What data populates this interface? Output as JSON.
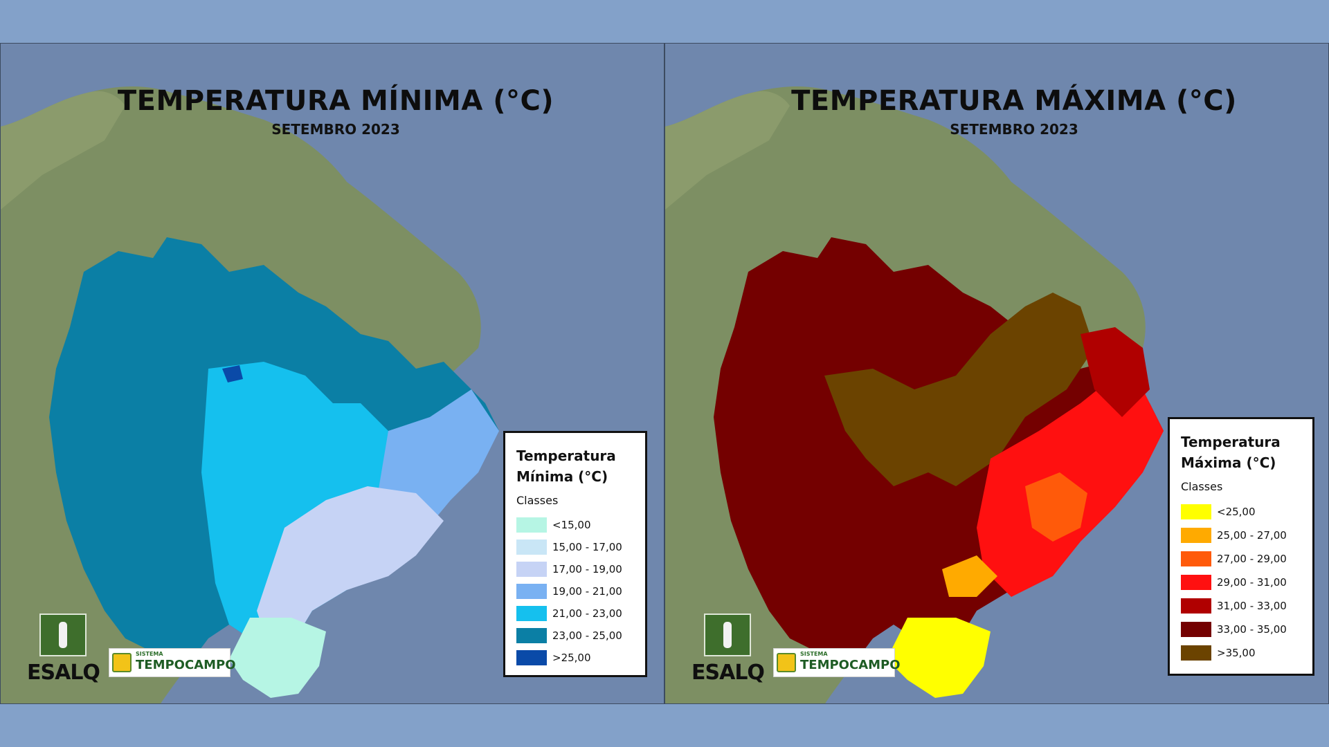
{
  "panels": [
    {
      "title": "TEMPERATURA MÍNIMA (°C)",
      "subtitle": "SETEMBRO 2023",
      "legend": {
        "title_line1": "Temperatura",
        "title_line2": "Mínima (°C)",
        "classes_label": "Classes",
        "classes": [
          {
            "label": "<15,00",
            "color": "#b6f5e4"
          },
          {
            "label": "15,00 - 17,00",
            "color": "#c9e6f6"
          },
          {
            "label": "17,00 - 19,00",
            "color": "#c6d3f5"
          },
          {
            "label": "19,00 - 21,00",
            "color": "#79b1f2"
          },
          {
            "label": "21,00 - 23,00",
            "color": "#15c0ee"
          },
          {
            "label": "23,00 - 25,00",
            "color": "#0b7fa5"
          },
          {
            "label": ">25,00",
            "color": "#0a4aa8"
          }
        ]
      }
    },
    {
      "title": "TEMPERATURA MÁXIMA (°C)",
      "subtitle": "SETEMBRO 2023",
      "legend": {
        "title_line1": "Temperatura",
        "title_line2": "Máxima (°C)",
        "classes_label": "Classes",
        "classes": [
          {
            "label": "<25,00",
            "color": "#ffff00"
          },
          {
            "label": "25,00 - 27,00",
            "color": "#ffaa00"
          },
          {
            "label": "27,00 - 29,00",
            "color": "#ff5a0a"
          },
          {
            "label": "29,00 - 31,00",
            "color": "#ff1010"
          },
          {
            "label": "31,00 - 33,00",
            "color": "#b00000"
          },
          {
            "label": "33,00 - 35,00",
            "color": "#740000"
          },
          {
            "label": ">35,00",
            "color": "#6b4300"
          }
        ]
      }
    }
  ],
  "logos": {
    "esalq": "ESALQ",
    "tempo_small": "SISTEMA",
    "tempo_main": "TEMPOCAMPO"
  },
  "colors": {
    "ocean": "#6f87ad",
    "land": "#7d8f63",
    "page_background": "#83a1c9"
  }
}
